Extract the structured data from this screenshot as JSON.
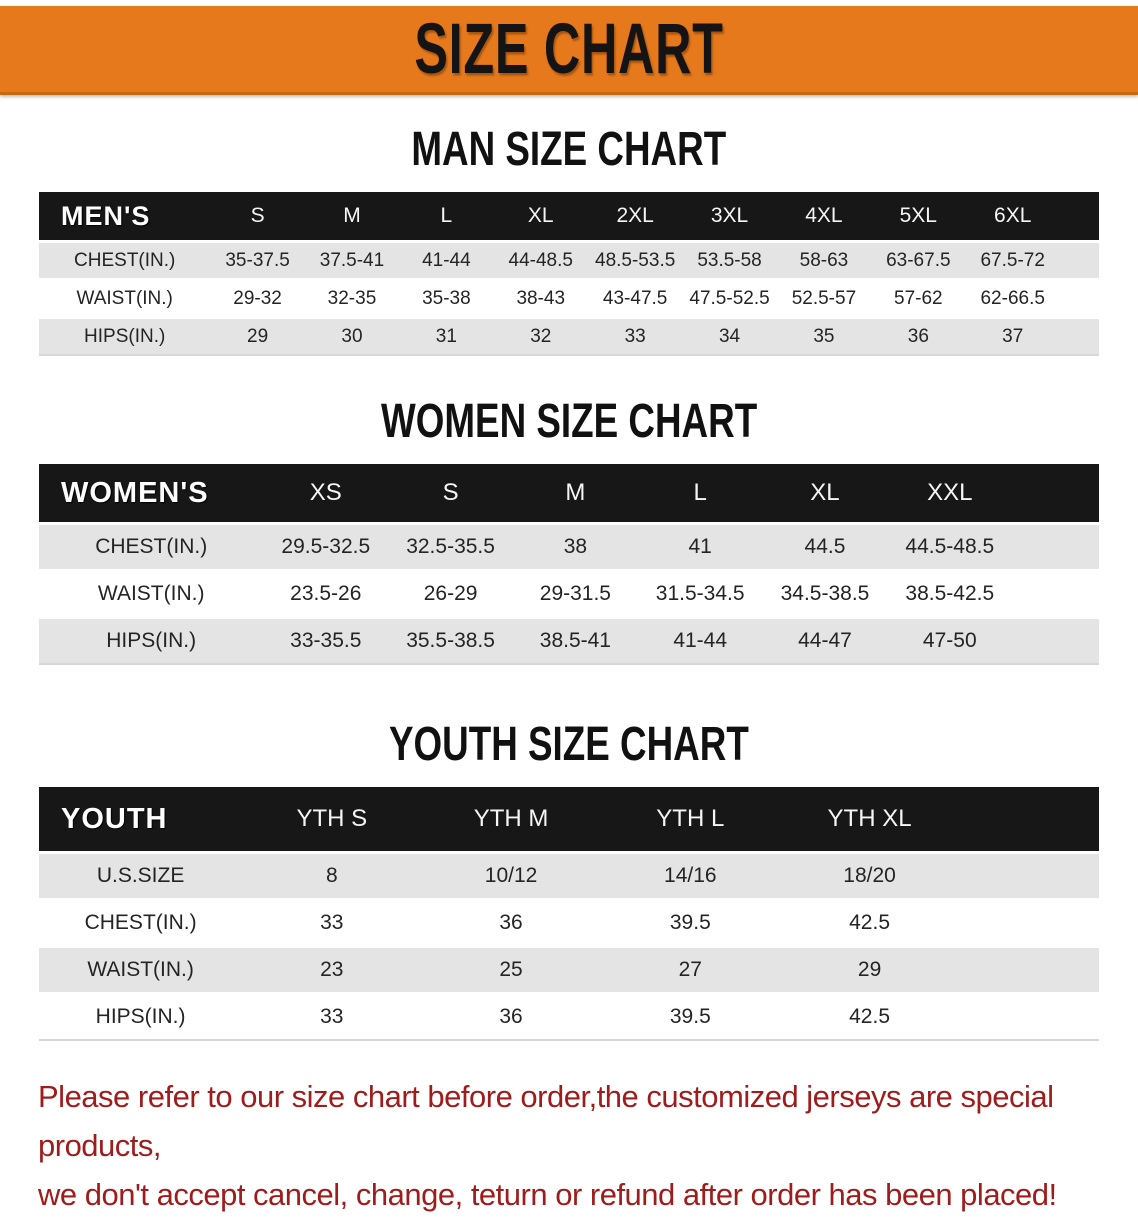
{
  "banner": {
    "title": "SIZE CHART",
    "bg_color": "#e6791b",
    "text_color": "#141414"
  },
  "sections": [
    {
      "heading": "MAN SIZE CHART",
      "table": {
        "header_label": "MEN'S",
        "columns": [
          "S",
          "M",
          "L",
          "XL",
          "2XL",
          "3XL",
          "4XL",
          "5XL",
          "6XL"
        ],
        "rows": [
          {
            "label": "CHEST(IN.)",
            "values": [
              "35-37.5",
              "37.5-41",
              "41-44",
              "44-48.5",
              "48.5-53.5",
              "53.5-58",
              "58-63",
              "63-67.5",
              "67.5-72"
            ]
          },
          {
            "label": "WAIST(IN.)",
            "values": [
              "29-32",
              "32-35",
              "35-38",
              "38-43",
              "43-47.5",
              "47.5-52.5",
              "52.5-57",
              "57-62",
              "62-66.5"
            ]
          },
          {
            "label": "HIPS(IN.)",
            "values": [
              "29",
              "30",
              "31",
              "32",
              "33",
              "34",
              "35",
              "36",
              "37"
            ]
          }
        ]
      }
    },
    {
      "heading": "WOMEN SIZE CHART",
      "table": {
        "header_label": "WOMEN'S",
        "columns": [
          "XS",
          "S",
          "M",
          "L",
          "XL",
          "XXL"
        ],
        "rows": [
          {
            "label": "CHEST(IN.)",
            "values": [
              "29.5-32.5",
              "32.5-35.5",
              "38",
              "41",
              "44.5",
              "44.5-48.5"
            ]
          },
          {
            "label": "WAIST(IN.)",
            "values": [
              "23.5-26",
              "26-29",
              "29-31.5",
              "31.5-34.5",
              "34.5-38.5",
              "38.5-42.5"
            ]
          },
          {
            "label": "HIPS(IN.)",
            "values": [
              "33-35.5",
              "35.5-38.5",
              "38.5-41",
              "41-44",
              "44-47",
              "47-50"
            ]
          }
        ]
      }
    },
    {
      "heading": "YOUTH SIZE CHART",
      "table": {
        "header_label": "YOUTH",
        "columns": [
          "YTH S",
          "YTH M",
          "YTH L",
          "YTH XL"
        ],
        "rows": [
          {
            "label": "U.S.SIZE",
            "values": [
              "8",
              "10/12",
              "14/16",
              "18/20"
            ]
          },
          {
            "label": "CHEST(IN.)",
            "values": [
              "33",
              "36",
              "39.5",
              "42.5"
            ]
          },
          {
            "label": "WAIST(IN.)",
            "values": [
              "23",
              "25",
              "27",
              "29"
            ]
          },
          {
            "label": "HIPS(IN.)",
            "values": [
              "33",
              "36",
              "39.5",
              "42.5"
            ]
          }
        ]
      }
    }
  ],
  "disclaimer": {
    "lines": [
      "Please refer to our size chart before order,the customized jerseys are special products,",
      "we don't accept cancel, change, teturn or refund after order has been placed!"
    ],
    "color": "#9e1c1c"
  },
  "style_colors": {
    "table_header_bg": "#171717",
    "row_stripe": "#e4e4e4"
  }
}
